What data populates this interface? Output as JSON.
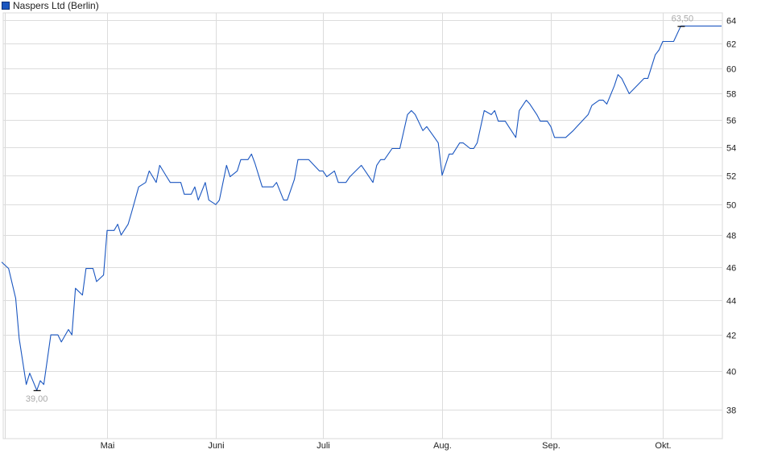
{
  "legend": {
    "label": "Naspers Ltd (Berlin)",
    "color": "#1a56c0"
  },
  "chart_data": {
    "type": "line",
    "title": "",
    "xlabel": "",
    "ylabel": "",
    "y_scale": "log",
    "ylim": [
      37,
      65
    ],
    "xlim": [
      "04-01",
      "10-17"
    ],
    "grid": true,
    "legend_position": "top-left",
    "y_axis_position": "right",
    "y_ticks": [
      38,
      40,
      42,
      44,
      46,
      48,
      50,
      52,
      54,
      56,
      58,
      60,
      62,
      64
    ],
    "x_ticks": [
      {
        "date": "05-01",
        "label": "Mai"
      },
      {
        "date": "06-01",
        "label": "Juni"
      },
      {
        "date": "07-01",
        "label": "Juli"
      },
      {
        "date": "08-01",
        "label": "Aug."
      },
      {
        "date": "09-01",
        "label": "Sep."
      },
      {
        "date": "10-01",
        "label": "Okt."
      }
    ],
    "annotations": {
      "min": {
        "date": "04-11",
        "value": 39.0,
        "label": "39,00"
      },
      "max": {
        "date": "10-06",
        "value": 63.5,
        "label": "63,50"
      }
    },
    "series": [
      {
        "color": "#1a56c0",
        "points": [
          [
            "04-01",
            46.3
          ],
          [
            "04-03",
            45.9
          ],
          [
            "04-05",
            44.1
          ],
          [
            "04-06",
            41.8
          ],
          [
            "04-08",
            39.3
          ],
          [
            "04-09",
            39.9
          ],
          [
            "04-11",
            39.0
          ],
          [
            "04-12",
            39.5
          ],
          [
            "04-13",
            39.3
          ],
          [
            "04-15",
            42.0
          ],
          [
            "04-17",
            42.0
          ],
          [
            "04-18",
            41.6
          ],
          [
            "04-20",
            42.3
          ],
          [
            "04-21",
            42.0
          ],
          [
            "04-22",
            44.7
          ],
          [
            "04-24",
            44.3
          ],
          [
            "04-25",
            45.9
          ],
          [
            "04-27",
            45.9
          ],
          [
            "04-28",
            45.1
          ],
          [
            "04-30",
            45.5
          ],
          [
            "05-01",
            48.3
          ],
          [
            "05-03",
            48.3
          ],
          [
            "05-04",
            48.7
          ],
          [
            "05-05",
            48.0
          ],
          [
            "05-07",
            48.7
          ],
          [
            "05-08",
            49.5
          ],
          [
            "05-10",
            51.2
          ],
          [
            "05-12",
            51.5
          ],
          [
            "05-13",
            52.3
          ],
          [
            "05-15",
            51.5
          ],
          [
            "05-16",
            52.7
          ],
          [
            "05-18",
            51.9
          ],
          [
            "05-19",
            51.5
          ],
          [
            "05-22",
            51.5
          ],
          [
            "05-23",
            50.7
          ],
          [
            "05-25",
            50.7
          ],
          [
            "05-26",
            51.2
          ],
          [
            "05-27",
            50.3
          ],
          [
            "05-29",
            51.5
          ],
          [
            "05-30",
            50.3
          ],
          [
            "06-01",
            50.0
          ],
          [
            "06-02",
            50.3
          ],
          [
            "06-04",
            52.7
          ],
          [
            "06-05",
            51.9
          ],
          [
            "06-07",
            52.3
          ],
          [
            "06-08",
            53.1
          ],
          [
            "06-10",
            53.1
          ],
          [
            "06-11",
            53.5
          ],
          [
            "06-12",
            52.8
          ],
          [
            "06-14",
            51.2
          ],
          [
            "06-17",
            51.2
          ],
          [
            "06-18",
            51.5
          ],
          [
            "06-20",
            50.3
          ],
          [
            "06-21",
            50.3
          ],
          [
            "06-23",
            51.7
          ],
          [
            "06-24",
            53.1
          ],
          [
            "06-27",
            53.1
          ],
          [
            "06-30",
            52.3
          ],
          [
            "07-01",
            52.3
          ],
          [
            "07-02",
            51.9
          ],
          [
            "07-04",
            52.3
          ],
          [
            "07-05",
            51.5
          ],
          [
            "07-07",
            51.5
          ],
          [
            "07-08",
            51.9
          ],
          [
            "07-11",
            52.7
          ],
          [
            "07-12",
            52.3
          ],
          [
            "07-14",
            51.5
          ],
          [
            "07-15",
            52.7
          ],
          [
            "07-16",
            53.1
          ],
          [
            "07-17",
            53.1
          ],
          [
            "07-19",
            53.9
          ],
          [
            "07-21",
            53.9
          ],
          [
            "07-23",
            56.4
          ],
          [
            "07-24",
            56.7
          ],
          [
            "07-25",
            56.4
          ],
          [
            "07-27",
            55.2
          ],
          [
            "07-28",
            55.5
          ],
          [
            "07-30",
            54.7
          ],
          [
            "07-31",
            54.3
          ],
          [
            "08-01",
            52.0
          ],
          [
            "08-03",
            53.5
          ],
          [
            "08-04",
            53.5
          ],
          [
            "08-06",
            54.3
          ],
          [
            "08-07",
            54.3
          ],
          [
            "08-09",
            53.9
          ],
          [
            "08-10",
            53.9
          ],
          [
            "08-11",
            54.3
          ],
          [
            "08-13",
            56.7
          ],
          [
            "08-15",
            56.4
          ],
          [
            "08-16",
            56.7
          ],
          [
            "08-17",
            55.9
          ],
          [
            "08-19",
            55.9
          ],
          [
            "08-20",
            55.5
          ],
          [
            "08-22",
            54.7
          ],
          [
            "08-23",
            56.7
          ],
          [
            "08-25",
            57.5
          ],
          [
            "08-26",
            57.2
          ],
          [
            "08-28",
            56.4
          ],
          [
            "08-29",
            55.9
          ],
          [
            "08-31",
            55.9
          ],
          [
            "09-01",
            55.5
          ],
          [
            "09-02",
            54.7
          ],
          [
            "09-05",
            54.7
          ],
          [
            "09-07",
            55.2
          ],
          [
            "09-08",
            55.5
          ],
          [
            "09-11",
            56.4
          ],
          [
            "09-12",
            57.1
          ],
          [
            "09-14",
            57.5
          ],
          [
            "09-15",
            57.5
          ],
          [
            "09-16",
            57.2
          ],
          [
            "09-18",
            58.6
          ],
          [
            "09-19",
            59.5
          ],
          [
            "09-20",
            59.2
          ],
          [
            "09-22",
            58.0
          ],
          [
            "09-26",
            59.2
          ],
          [
            "09-27",
            59.2
          ],
          [
            "09-29",
            61.1
          ],
          [
            "09-30",
            61.5
          ],
          [
            "10-01",
            62.2
          ],
          [
            "10-04",
            62.2
          ],
          [
            "10-06",
            63.5
          ]
        ]
      }
    ]
  }
}
